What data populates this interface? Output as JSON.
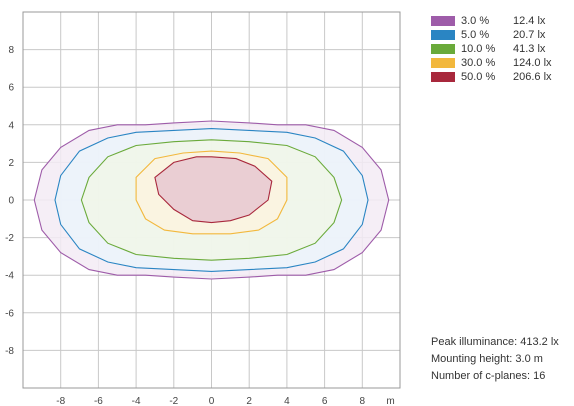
{
  "chart_data": {
    "type": "contour",
    "xlim": [
      -10,
      10
    ],
    "ylim": [
      -10,
      10
    ],
    "x_tick_labels": [
      "-8",
      "-6",
      "-4",
      "-2",
      "0",
      "2",
      "4",
      "6",
      "8"
    ],
    "y_tick_labels": [
      "8",
      "6",
      "4",
      "2",
      "0",
      "-2",
      "-4",
      "-6",
      "-8"
    ],
    "x_unit": "m",
    "grid": true,
    "legend_position": "top-right",
    "series": [
      {
        "percent": "3.0 %",
        "lux": "12.4 lx",
        "color": "#9e5ca9",
        "fill": "#f3ebf5",
        "points": [
          [
            -9.4,
            0
          ],
          [
            -9,
            1.6
          ],
          [
            -8,
            2.8
          ],
          [
            -6.5,
            3.7
          ],
          [
            -5,
            4
          ],
          [
            -3.5,
            4
          ],
          [
            -2,
            4.1
          ],
          [
            0,
            4.2
          ],
          [
            2,
            4.1
          ],
          [
            3.5,
            4
          ],
          [
            5,
            4
          ],
          [
            6.5,
            3.7
          ],
          [
            8,
            2.8
          ],
          [
            9,
            1.6
          ],
          [
            9.4,
            0
          ],
          [
            9,
            -1.6
          ],
          [
            8,
            -2.8
          ],
          [
            6.5,
            -3.7
          ],
          [
            5,
            -4
          ],
          [
            3.5,
            -4
          ],
          [
            2,
            -4.1
          ],
          [
            0,
            -4.2
          ],
          [
            -2,
            -4.1
          ],
          [
            -3.5,
            -4
          ],
          [
            -5,
            -4
          ],
          [
            -6.5,
            -3.7
          ],
          [
            -8,
            -2.8
          ],
          [
            -9,
            -1.6
          ]
        ]
      },
      {
        "percent": "5.0 %",
        "lux": "20.7 lx",
        "color": "#2a85c3",
        "fill": "#ebf3fa",
        "points": [
          [
            -8.3,
            0
          ],
          [
            -8,
            1.3
          ],
          [
            -7,
            2.6
          ],
          [
            -5.5,
            3.3
          ],
          [
            -4,
            3.6
          ],
          [
            -2,
            3.7
          ],
          [
            0,
            3.8
          ],
          [
            2,
            3.7
          ],
          [
            4,
            3.6
          ],
          [
            5.5,
            3.3
          ],
          [
            7,
            2.6
          ],
          [
            8,
            1.3
          ],
          [
            8.3,
            0
          ],
          [
            8,
            -1.3
          ],
          [
            7,
            -2.6
          ],
          [
            5.5,
            -3.3
          ],
          [
            4,
            -3.6
          ],
          [
            2,
            -3.7
          ],
          [
            0,
            -3.8
          ],
          [
            -2,
            -3.7
          ],
          [
            -4,
            -3.6
          ],
          [
            -5.5,
            -3.3
          ],
          [
            -7,
            -2.6
          ],
          [
            -8,
            -1.3
          ]
        ]
      },
      {
        "percent": "10.0 %",
        "lux": "41.3 lx",
        "color": "#6aaa3a",
        "fill": "#f0f6e8",
        "points": [
          [
            -6.9,
            0
          ],
          [
            -6.5,
            1.2
          ],
          [
            -5.5,
            2.3
          ],
          [
            -4,
            2.9
          ],
          [
            -2,
            3.1
          ],
          [
            0,
            3.2
          ],
          [
            2,
            3.1
          ],
          [
            4,
            2.9
          ],
          [
            5.5,
            2.3
          ],
          [
            6.5,
            1.2
          ],
          [
            6.9,
            0
          ],
          [
            6.5,
            -1.2
          ],
          [
            5.5,
            -2.3
          ],
          [
            4,
            -2.9
          ],
          [
            2,
            -3.1
          ],
          [
            0,
            -3.2
          ],
          [
            -2,
            -3.1
          ],
          [
            -4,
            -2.9
          ],
          [
            -5.5,
            -2.3
          ],
          [
            -6.5,
            -1.2
          ]
        ]
      },
      {
        "percent": "30.0 %",
        "lux": "124.0 lx",
        "color": "#f2b83d",
        "fill": "#fbf3df",
        "points": [
          [
            -4,
            0
          ],
          [
            -4,
            1.2
          ],
          [
            -3,
            2.2
          ],
          [
            -1.5,
            2.5
          ],
          [
            0,
            2.6
          ],
          [
            1.5,
            2.5
          ],
          [
            3,
            2.2
          ],
          [
            4,
            1.2
          ],
          [
            4,
            0
          ],
          [
            3.5,
            -1
          ],
          [
            2.5,
            -1.6
          ],
          [
            1,
            -1.8
          ],
          [
            0,
            -1.8
          ],
          [
            -1,
            -1.8
          ],
          [
            -2.5,
            -1.6
          ],
          [
            -3.5,
            -1
          ]
        ]
      },
      {
        "percent": "50.0 %",
        "lux": "206.6 lx",
        "color": "#a8283c",
        "fill": "#e6c7d0",
        "points": [
          [
            -3,
            1.2
          ],
          [
            -2,
            2
          ],
          [
            -0.8,
            2.3
          ],
          [
            0,
            2.3
          ],
          [
            1.3,
            2.2
          ],
          [
            2.3,
            1.8
          ],
          [
            3.2,
            1
          ],
          [
            3,
            0
          ],
          [
            2,
            -0.8
          ],
          [
            1,
            -1.1
          ],
          [
            0,
            -1.2
          ],
          [
            -1,
            -1.1
          ],
          [
            -2,
            -0.5
          ],
          [
            -2.8,
            0.3
          ]
        ]
      }
    ]
  },
  "info": {
    "peak": "Peak illuminance: 413.2 lx",
    "height": "Mounting height: 3.0 m",
    "planes": "Number of c-planes: 16"
  }
}
